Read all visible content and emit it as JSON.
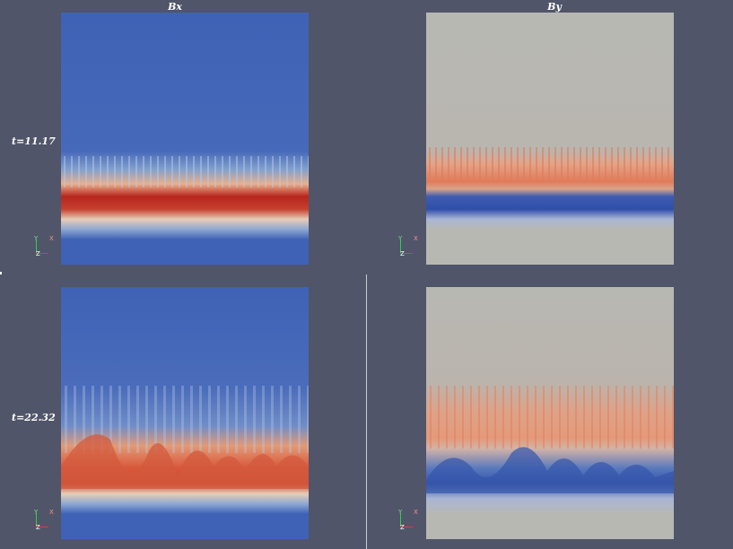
{
  "titles": {
    "left": "Bx",
    "right": "By"
  },
  "rows": [
    {
      "time_label": "t=11.17"
    },
    {
      "time_label": "t=22.32"
    }
  ],
  "axes_triad": {
    "labels": [
      "Y",
      "X",
      "Z"
    ]
  },
  "colors": {
    "background": "#515569",
    "bx_field": "#3f62b6",
    "by_field": "#b8b8b3",
    "hot": "#b8261e",
    "warm": "#e07b5a",
    "cool": "#2f4ea8"
  }
}
